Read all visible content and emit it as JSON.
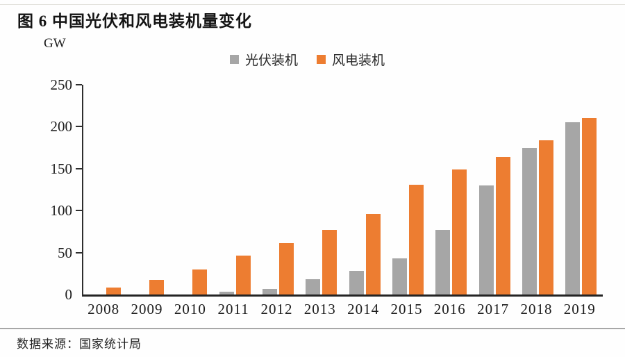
{
  "figure": {
    "title": "图 6 中国光伏和风电装机量变化",
    "unit_label": "GW",
    "source": "数据来源：国家统计局"
  },
  "legend": {
    "items": [
      {
        "label": "光伏装机",
        "color": "#a6a6a6"
      },
      {
        "label": "风电装机",
        "color": "#ed7d31"
      }
    ]
  },
  "colors": {
    "pv_gray": "#a6a6a6",
    "wind_orange": "#ed7d31",
    "axis": "#2e2e2e"
  },
  "chart_data": {
    "type": "bar",
    "title": "图 6 中国光伏和风电装机量变化",
    "categories": [
      "2008",
      "2009",
      "2010",
      "2011",
      "2012",
      "2013",
      "2014",
      "2015",
      "2016",
      "2017",
      "2018",
      "2019"
    ],
    "series": [
      {
        "name": "光伏装机",
        "key": "pv",
        "color": "#a6a6a6",
        "values": [
          0,
          0,
          0,
          3,
          7,
          18,
          28,
          43,
          77,
          130,
          175,
          205
        ]
      },
      {
        "name": "风电装机",
        "key": "wind",
        "color": "#ed7d31",
        "values": [
          8,
          17,
          30,
          46,
          61,
          77,
          96,
          131,
          149,
          164,
          184,
          210
        ]
      }
    ],
    "xlabel": "",
    "ylabel": "GW",
    "ylim": [
      0,
      250
    ],
    "yticks": [
      0,
      50,
      100,
      150,
      200,
      250
    ],
    "grid": false,
    "legend_position": "top-center"
  }
}
